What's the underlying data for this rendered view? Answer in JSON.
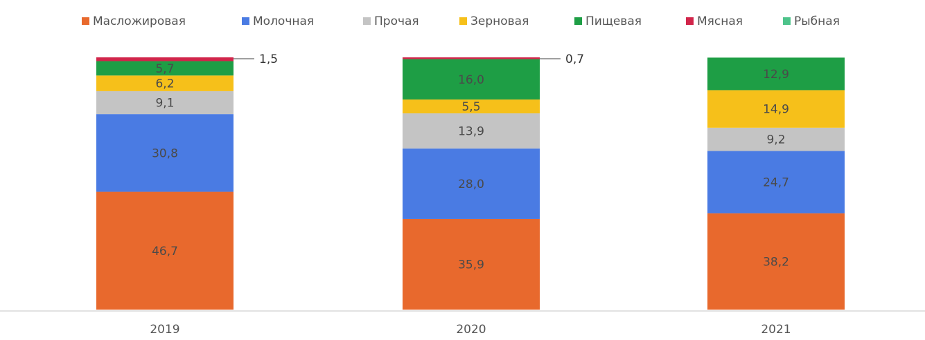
{
  "chart_data": {
    "type": "bar",
    "stacked": true,
    "title": "",
    "xlabel": "",
    "ylabel": "",
    "ylim": [
      0,
      100
    ],
    "grid": false,
    "legend_position": "top",
    "categories": [
      "2019",
      "2020",
      "2021"
    ],
    "series": [
      {
        "name": "Масложировая",
        "color": "#E8692D",
        "values": [
          46.7,
          35.9,
          38.2
        ],
        "labels": [
          "46,7",
          "35,9",
          "38,2"
        ]
      },
      {
        "name": "Молочная",
        "color": "#4A7BE3",
        "values": [
          30.8,
          28.0,
          24.7
        ],
        "labels": [
          "30,8",
          "28,0",
          "24,7"
        ]
      },
      {
        "name": "Прочая",
        "color": "#C4C4C4",
        "values": [
          9.1,
          13.9,
          9.2
        ],
        "labels": [
          "9,1",
          "13,9",
          "9,2"
        ]
      },
      {
        "name": "Зерновая",
        "color": "#F6C01A",
        "values": [
          6.2,
          5.5,
          14.9
        ],
        "labels": [
          "6,2",
          "5,5",
          "14,9"
        ]
      },
      {
        "name": "Пищевая",
        "color": "#1E9E45",
        "values": [
          5.7,
          16.0,
          12.9
        ],
        "labels": [
          "5,7",
          "16,0",
          "12,9"
        ]
      },
      {
        "name": "Мясная",
        "color": "#D1254A",
        "values": [
          1.5,
          0.7,
          0
        ],
        "labels": [
          "",
          "",
          ""
        ]
      },
      {
        "name": "Рыбная",
        "color": "#4DC38A",
        "values": [
          0,
          0,
          0
        ],
        "labels": [
          "",
          "",
          ""
        ]
      }
    ],
    "annotations": [
      {
        "category": "2019",
        "series": "Мясная",
        "text": "1,5"
      },
      {
        "category": "2020",
        "series": "Мясная",
        "text": "0,7"
      }
    ]
  }
}
